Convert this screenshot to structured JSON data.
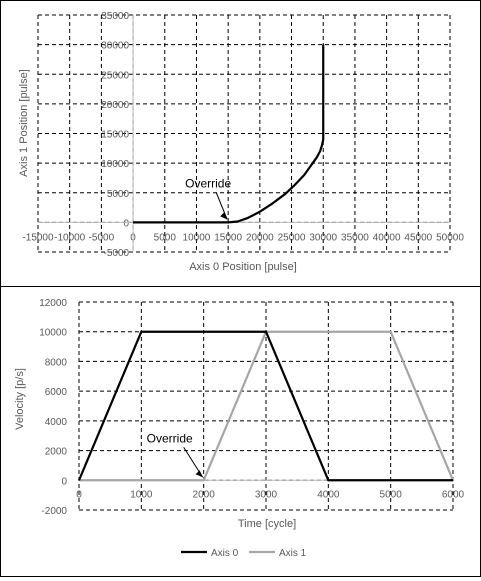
{
  "chart_data": [
    {
      "type": "line",
      "xlabel": "Axis 0 Position [pulse]",
      "ylabel": "Axis 1 Position [pulse]",
      "xlim": [
        -15000,
        50000
      ],
      "ylim": [
        -5000,
        35000
      ],
      "xticks": [
        -15000,
        -10000,
        -5000,
        0,
        5000,
        10000,
        15000,
        20000,
        25000,
        30000,
        35000,
        40000,
        45000,
        50000
      ],
      "yticks": [
        -5000,
        0,
        5000,
        10000,
        15000,
        20000,
        25000,
        30000,
        35000
      ],
      "grid": true,
      "series": [
        {
          "color": "#000000",
          "x": [
            0,
            15000,
            16500,
            18000,
            20000,
            22000,
            24000,
            25500,
            27000,
            28000,
            29000,
            29500,
            29800,
            30000,
            30000
          ],
          "y": [
            0,
            0,
            150,
            700,
            1800,
            3200,
            4800,
            6300,
            8000,
            9500,
            11000,
            12000,
            13000,
            14000,
            30000
          ]
        }
      ],
      "annotations": [
        {
          "text": "Override",
          "x": 15000,
          "y": 0
        }
      ]
    },
    {
      "type": "line",
      "xlabel": "Time [cycle]",
      "ylabel": "Velocity [p/s]",
      "xlim": [
        0,
        6000
      ],
      "ylim": [
        -2000,
        12000
      ],
      "xticks": [
        0,
        1000,
        2000,
        3000,
        4000,
        5000,
        6000
      ],
      "yticks": [
        -2000,
        0,
        2000,
        4000,
        6000,
        8000,
        10000,
        12000
      ],
      "grid": true,
      "legend": "bottom",
      "series": [
        {
          "name": "Axis 0",
          "color": "#000000",
          "x": [
            0,
            1000,
            3000,
            4000,
            6000
          ],
          "y": [
            0,
            10000,
            10000,
            0,
            0
          ]
        },
        {
          "name": "Axis 1",
          "color": "#a6a6a6",
          "x": [
            0,
            2000,
            3000,
            5000,
            6000
          ],
          "y": [
            0,
            0,
            10000,
            10000,
            0
          ]
        }
      ],
      "annotations": [
        {
          "text": "Override",
          "x": 2000,
          "y": 0
        }
      ]
    }
  ]
}
